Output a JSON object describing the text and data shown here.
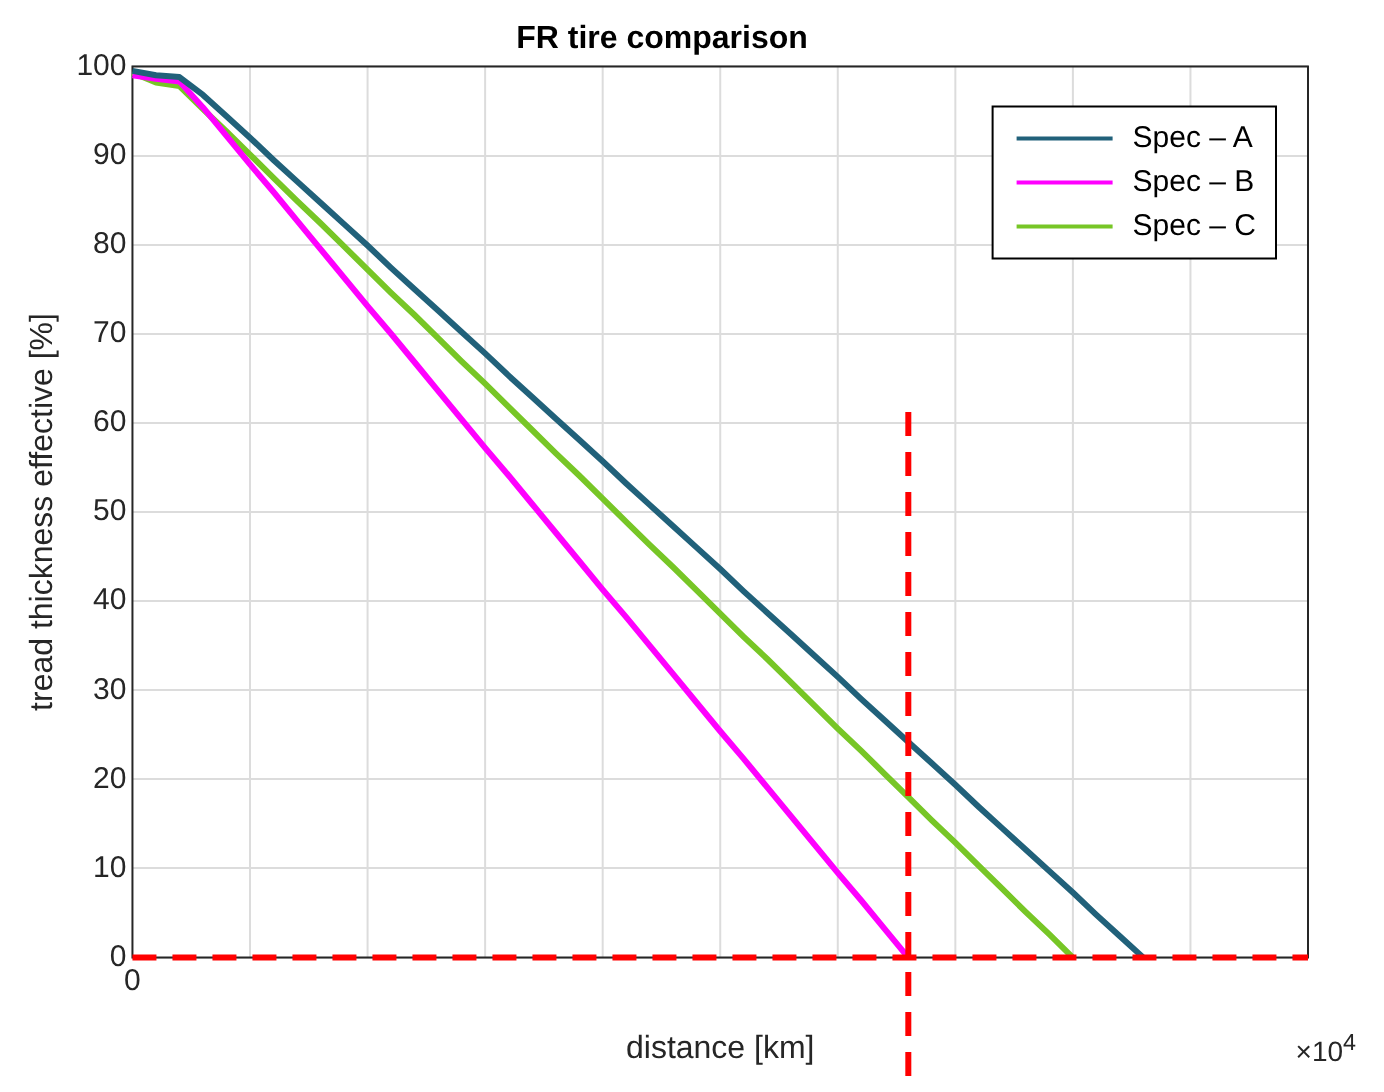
{
  "chart_data": {
    "type": "line",
    "title": "FR tire comparison",
    "xlabel": "distance [km]",
    "ylabel": "tread thickness effective [%]",
    "categories": [
      "0",
      null,
      null,
      null,
      null,
      null,
      null,
      null,
      null,
      null,
      null,
      null,
      null,
      null,
      null,
      null,
      null,
      null,
      null,
      null,
      null,
      null,
      null,
      null,
      null,
      null,
      null,
      null,
      null,
      null,
      null,
      null,
      null,
      null,
      null,
      null,
      null,
      null,
      null,
      null,
      null,
      null,
      null,
      null,
      null,
      null,
      null,
      null,
      null,
      null,
      null
    ],
    "series": [
      {
        "name": "Spec – A",
        "color": "#21617a",
        "values": [
          99.5,
          99,
          98.8,
          96.8,
          94.4,
          92.0,
          89.5,
          87.1,
          84.7,
          82.3,
          79.9,
          77.4,
          75.0,
          72.6,
          70.2,
          67.8,
          65.3,
          62.9,
          60.5,
          58.1,
          55.7,
          53.2,
          50.8,
          48.4,
          46.0,
          43.6,
          41.1,
          38.7,
          36.3,
          33.9,
          31.5,
          29.0,
          26.6,
          24.2,
          21.8,
          19.4,
          16.9,
          14.5,
          12.1,
          9.7,
          7.3,
          4.8,
          2.4,
          0,
          null,
          null,
          null,
          null,
          null,
          null,
          null
        ]
      },
      {
        "name": "Spec – B",
        "color": "#ff00ff",
        "values": [
          99,
          98.6,
          98.3,
          95.4,
          92.2,
          89.0,
          85.9,
          82.7,
          79.5,
          76.3,
          73.1,
          70.0,
          66.8,
          63.6,
          60.4,
          57.2,
          54.1,
          50.9,
          47.7,
          44.5,
          41.3,
          38.2,
          35.0,
          31.8,
          28.6,
          25.4,
          22.3,
          19.1,
          15.9,
          12.7,
          9.5,
          6.4,
          3.2,
          0,
          null,
          null,
          null,
          null,
          null,
          null,
          null,
          null,
          null,
          null,
          null,
          null,
          null,
          null,
          null,
          null,
          null
        ]
      },
      {
        "name": "Spec – C",
        "color": "#77c626",
        "values": [
          99.3,
          98.2,
          97.8,
          95.2,
          92.7,
          90.1,
          87.5,
          84.9,
          82.4,
          79.8,
          77.2,
          74.6,
          72.1,
          69.5,
          66.9,
          64.4,
          61.8,
          59.2,
          56.6,
          54.1,
          51.5,
          48.9,
          46.3,
          43.8,
          41.2,
          38.6,
          36.0,
          33.5,
          30.9,
          28.3,
          25.7,
          23.2,
          20.6,
          18.0,
          15.4,
          12.9,
          10.3,
          7.7,
          5.1,
          2.6,
          0,
          null,
          null,
          null,
          null,
          null,
          null,
          null,
          null,
          null,
          null
        ]
      }
    ],
    "ylim": [
      0,
      100
    ],
    "yticks": [
      0,
      10,
      20,
      30,
      40,
      50,
      60,
      70,
      80,
      90,
      100
    ],
    "grid": true,
    "legend": "top right",
    "marker": "none",
    "line_style": "solid",
    "ref_lines": [
      {
        "axis": "y",
        "value": 0,
        "color": "#ff0000",
        "line_style": "dashed"
      }
    ],
    "annotations": [
      "×10$^{4}$"
    ]
  }
}
